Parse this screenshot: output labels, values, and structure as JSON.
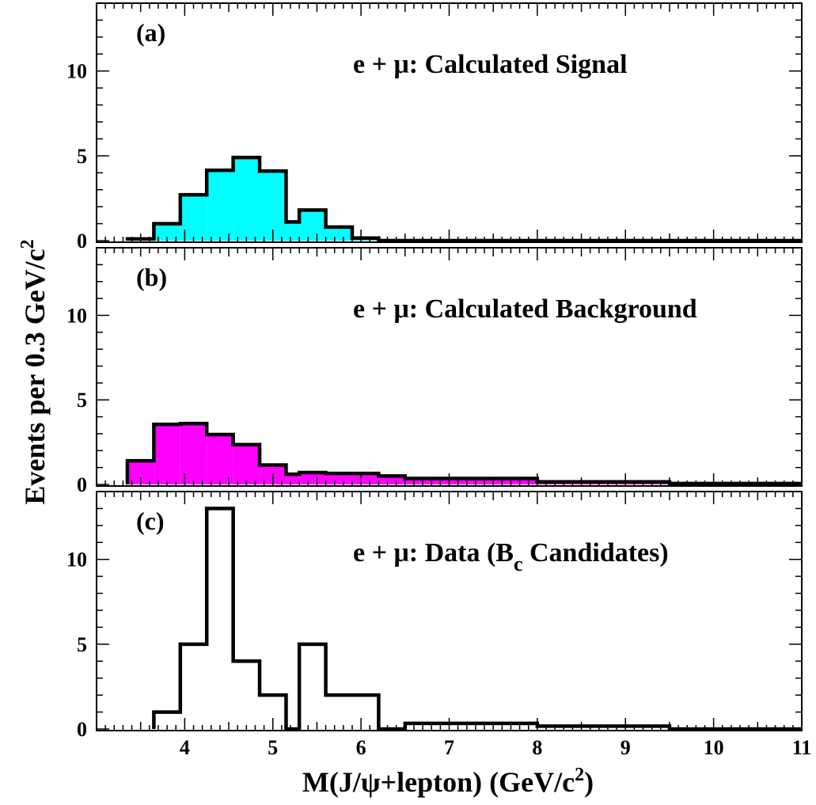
{
  "chart_data": [
    {
      "type": "bar",
      "label": "(a)",
      "title_prefix": "e + μ: ",
      "title_main": "Calculated Signal",
      "title_sub": "",
      "title_tail": "",
      "fill": "#00ffff",
      "ylim": [
        0,
        14
      ],
      "yticks": [
        "0",
        "5",
        "10"
      ],
      "bins": [
        {
          "x0": 3.35,
          "x1": 3.65,
          "y": 0.1
        },
        {
          "x0": 3.65,
          "x1": 3.95,
          "y": 1.0
        },
        {
          "x0": 3.95,
          "x1": 4.25,
          "y": 2.7
        },
        {
          "x0": 4.25,
          "x1": 4.55,
          "y": 4.15
        },
        {
          "x0": 4.55,
          "x1": 4.85,
          "y": 4.9
        },
        {
          "x0": 4.85,
          "x1": 5.15,
          "y": 4.1
        },
        {
          "x0": 5.15,
          "x1": 5.3,
          "y": 1.1
        },
        {
          "x0": 5.3,
          "x1": 5.6,
          "y": 1.8
        },
        {
          "x0": 5.6,
          "x1": 5.9,
          "y": 0.8
        },
        {
          "x0": 5.9,
          "x1": 6.2,
          "y": 0.15
        },
        {
          "x0": 6.2,
          "x1": 11.0,
          "y": 0.0
        }
      ]
    },
    {
      "type": "bar",
      "label": "(b)",
      "title_prefix": "e + μ: ",
      "title_main": "Calculated Background",
      "title_sub": "",
      "title_tail": "",
      "fill": "#ff00ff",
      "ylim": [
        0,
        14
      ],
      "yticks": [
        "0",
        "5",
        "10"
      ],
      "bins": [
        {
          "x0": 3.35,
          "x1": 3.65,
          "y": 1.4
        },
        {
          "x0": 3.65,
          "x1": 3.95,
          "y": 3.55
        },
        {
          "x0": 3.95,
          "x1": 4.25,
          "y": 3.6
        },
        {
          "x0": 4.25,
          "x1": 4.55,
          "y": 2.95
        },
        {
          "x0": 4.55,
          "x1": 4.85,
          "y": 2.35
        },
        {
          "x0": 4.85,
          "x1": 5.15,
          "y": 1.15
        },
        {
          "x0": 5.15,
          "x1": 5.3,
          "y": 0.6
        },
        {
          "x0": 5.3,
          "x1": 5.6,
          "y": 0.7
        },
        {
          "x0": 5.6,
          "x1": 5.9,
          "y": 0.65
        },
        {
          "x0": 5.9,
          "x1": 6.2,
          "y": 0.65
        },
        {
          "x0": 6.2,
          "x1": 6.5,
          "y": 0.5
        },
        {
          "x0": 6.5,
          "x1": 8.0,
          "y": 0.35
        },
        {
          "x0": 8.0,
          "x1": 9.5,
          "y": 0.15
        },
        {
          "x0": 9.5,
          "x1": 11.0,
          "y": 0.05
        }
      ]
    },
    {
      "type": "bar",
      "label": "(c)",
      "title_prefix": "e + μ: ",
      "title_main": "Data (B",
      "title_sub": "c",
      "title_tail": " Candidates)",
      "fill": "none",
      "ylim": [
        0,
        14
      ],
      "yticks": [
        "0",
        "5",
        "10"
      ],
      "bins": [
        {
          "x0": 3.65,
          "x1": 3.95,
          "y": 1
        },
        {
          "x0": 3.95,
          "x1": 4.25,
          "y": 5
        },
        {
          "x0": 4.25,
          "x1": 4.55,
          "y": 13
        },
        {
          "x0": 4.55,
          "x1": 4.85,
          "y": 4
        },
        {
          "x0": 4.85,
          "x1": 5.15,
          "y": 2
        },
        {
          "x0": 5.15,
          "x1": 5.3,
          "y": 0
        },
        {
          "x0": 5.3,
          "x1": 5.6,
          "y": 5
        },
        {
          "x0": 5.6,
          "x1": 6.2,
          "y": 2
        },
        {
          "x0": 6.2,
          "x1": 6.5,
          "y": 0
        },
        {
          "x0": 6.5,
          "x1": 8.0,
          "y": 0.33
        },
        {
          "x0": 8.0,
          "x1": 9.5,
          "y": 0.17
        },
        {
          "x0": 9.5,
          "x1": 11.0,
          "y": 0
        }
      ]
    }
  ],
  "x_axis": {
    "xlim": [
      3.0,
      11.0
    ],
    "ticks": [
      "4",
      "5",
      "6",
      "7",
      "8",
      "9",
      "10",
      "11"
    ],
    "title_main": "M(J/ψ+lepton) (GeV/c",
    "title_sup": "2",
    "title_tail": ")"
  },
  "y_axis": {
    "title_main": "Events per 0.3 GeV/c",
    "title_sup": "2"
  }
}
